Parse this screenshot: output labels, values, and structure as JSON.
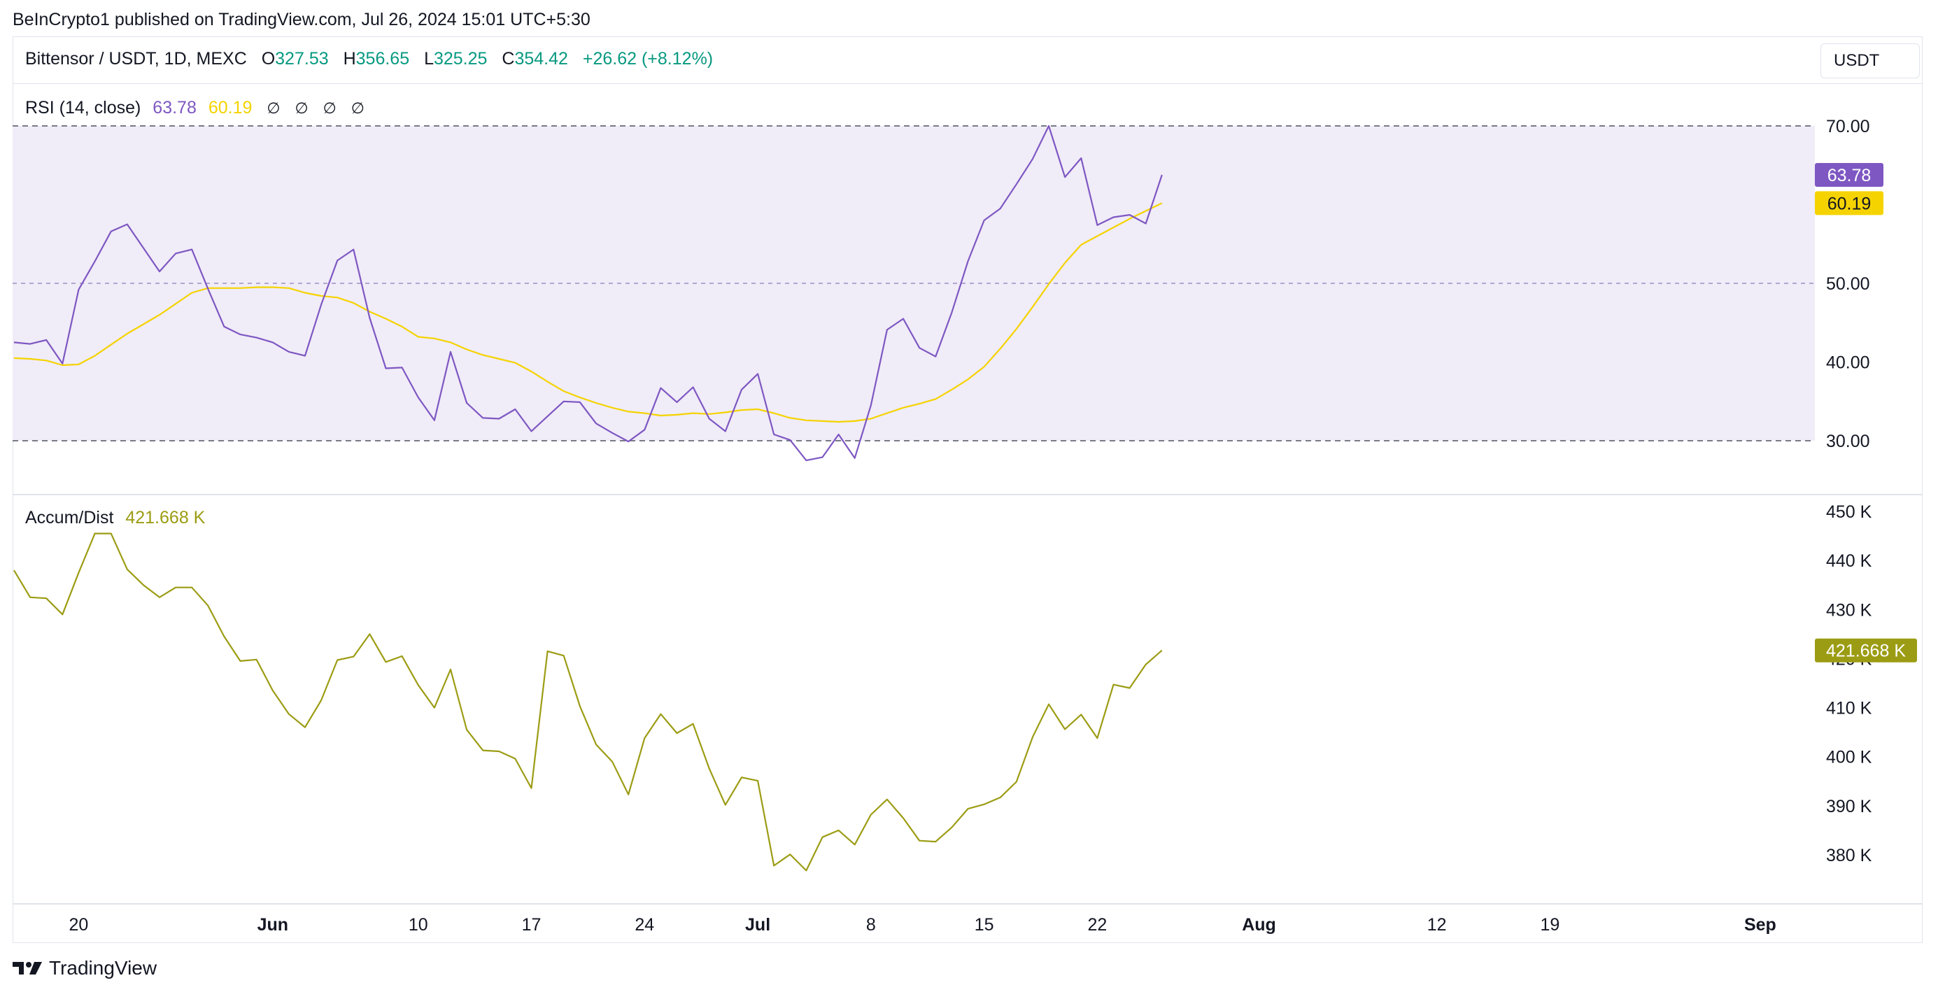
{
  "publish_line": "BeInCrypto1 published on TradingView.com, Jul 26, 2024 15:01 UTC+5:30",
  "symbol": {
    "name": "Bittensor / USDT, 1D, MEXC",
    "open_label": "O",
    "open": "327.53",
    "high_label": "H",
    "high": "356.65",
    "low_label": "L",
    "low": "325.25",
    "close_label": "C",
    "close": "354.42",
    "change": "+26.62 (+8.12%)"
  },
  "currency": "USDT",
  "rsi_legend": {
    "name": "RSI (14, close)",
    "rsi_value": "63.78",
    "ma_value": "60.19",
    "na_marks": [
      "∅",
      "∅",
      "∅",
      "∅"
    ]
  },
  "ad_legend": {
    "name": "Accum/Dist",
    "value": "421.668 K"
  },
  "footer": {
    "brand": "TradingView"
  },
  "colors": {
    "rsi_line": "#7e57c2",
    "rsi_ma": "#f5d300",
    "rsi_band": "#f0ecf8",
    "ad_line": "#9c9c14",
    "ad_badge": "#9c9c14"
  },
  "chart_data": [
    {
      "type": "line",
      "title": "RSI (14, close)",
      "ylim": [
        23,
        74
      ],
      "ticks": [
        "70.00",
        "50.00",
        "40.00",
        "30.00"
      ],
      "tick_values": [
        70,
        50,
        40,
        30
      ],
      "levels": [
        70,
        50,
        30
      ],
      "band": [
        30,
        70
      ],
      "last_labels": {
        "rsi": "63.78",
        "ma": "60.19"
      },
      "x_dates": [
        "May 16",
        "May 17",
        "May 18",
        "May 19",
        "May 20",
        "May 21",
        "May 22",
        "May 23",
        "May 24",
        "May 25",
        "May 26",
        "May 27",
        "May 28",
        "May 29",
        "May 30",
        "May 31",
        "Jun 1",
        "Jun 2",
        "Jun 3",
        "Jun 4",
        "Jun 5",
        "Jun 6",
        "Jun 7",
        "Jun 8",
        "Jun 9",
        "Jun 10",
        "Jun 11",
        "Jun 12",
        "Jun 13",
        "Jun 14",
        "Jun 15",
        "Jun 16",
        "Jun 17",
        "Jun 18",
        "Jun 19",
        "Jun 20",
        "Jun 21",
        "Jun 22",
        "Jun 23",
        "Jun 24",
        "Jun 25",
        "Jun 26",
        "Jun 27",
        "Jun 28",
        "Jun 29",
        "Jun 30",
        "Jul 1",
        "Jul 2",
        "Jul 3",
        "Jul 4",
        "Jul 5",
        "Jul 6",
        "Jul 7",
        "Jul 8",
        "Jul 9",
        "Jul 10",
        "Jul 11",
        "Jul 12",
        "Jul 13",
        "Jul 14",
        "Jul 15",
        "Jul 16",
        "Jul 17",
        "Jul 18",
        "Jul 19",
        "Jul 20",
        "Jul 21",
        "Jul 22",
        "Jul 23",
        "Jul 24",
        "Jul 25",
        "Jul 26"
      ],
      "series": [
        {
          "name": "RSI",
          "values": [
            42.5,
            42.3,
            42.8,
            39.8,
            49.2,
            52.8,
            56.6,
            57.5,
            54.5,
            51.5,
            53.8,
            54.3,
            49.3,
            44.5,
            43.5,
            43.1,
            42.5,
            41.3,
            40.8,
            47.3,
            52.9,
            54.3,
            45.6,
            39.2,
            39.3,
            35.5,
            32.6,
            41.3,
            34.8,
            32.9,
            32.8,
            34,
            31.2,
            33.1,
            35,
            34.9,
            32.2,
            31,
            29.9,
            31.4,
            36.7,
            34.9,
            36.8,
            32.8,
            31.2,
            36.5,
            38.5,
            30.8,
            30.1,
            27.5,
            27.9,
            30.8,
            27.8,
            34.5,
            44.1,
            45.5,
            41.8,
            40.7,
            46.3,
            52.8,
            58,
            59.5,
            62.6,
            65.8,
            70,
            63.5,
            65.9,
            57.4,
            58.4,
            58.7,
            57.6,
            63.78
          ]
        },
        {
          "name": "RSI-based MA",
          "values": [
            40.5,
            40.4,
            40.2,
            39.6,
            39.7,
            40.8,
            42.2,
            43.6,
            44.8,
            46,
            47.4,
            48.8,
            49.4,
            49.4,
            49.4,
            49.5,
            49.5,
            49.4,
            48.8,
            48.4,
            48.2,
            47.5,
            46.4,
            45.5,
            44.5,
            43.2,
            43,
            42.5,
            41.6,
            40.9,
            40.4,
            39.9,
            38.8,
            37.5,
            36.3,
            35.5,
            34.8,
            34.2,
            33.7,
            33.5,
            33.2,
            33.3,
            33.5,
            33.4,
            33.6,
            33.9,
            34,
            33.5,
            32.9,
            32.6,
            32.5,
            32.4,
            32.5,
            32.8,
            33.5,
            34.2,
            34.7,
            35.3,
            36.5,
            37.8,
            39.4,
            41.7,
            44.2,
            47,
            49.9,
            52.6,
            54.9,
            56,
            57.1,
            58.2,
            59.2,
            60.19
          ]
        }
      ]
    },
    {
      "type": "line",
      "title": "Accum/Dist",
      "ylim": [
        369,
        452
      ],
      "ticks": [
        "450 K",
        "440 K",
        "430 K",
        "420 K",
        "410 K",
        "400 K",
        "390 K",
        "380 K"
      ],
      "tick_values": [
        450,
        440,
        430,
        420,
        410,
        400,
        390,
        380
      ],
      "last_label": "421.668 K",
      "x_dates_ref": "same as RSI",
      "series": [
        {
          "name": "Accum/Dist",
          "values": [
            438,
            432.5,
            432.3,
            429,
            437.5,
            445.5,
            445.5,
            438.2,
            435,
            432.5,
            434.5,
            434.5,
            430.8,
            424.5,
            419.5,
            419.8,
            413.5,
            408.7,
            406,
            411.5,
            419.7,
            420.4,
            425,
            419.3,
            420.5,
            414.6,
            410,
            417.8,
            405.5,
            401.3,
            401.1,
            399.6,
            393.6,
            421.5,
            420.6,
            410.3,
            402.5,
            399,
            392.3,
            403.8,
            408.7,
            404.8,
            406.7,
            397.6,
            390.2,
            395.8,
            395.1,
            377.8,
            380.1,
            376.8,
            383.6,
            385,
            382.1,
            388.2,
            391.3,
            387.5,
            382.9,
            382.7,
            385.6,
            389.4,
            390.3,
            391.7,
            394.9,
            404,
            410.7,
            405.6,
            408.6,
            403.8,
            414.7,
            414,
            418.8,
            421.668
          ]
        }
      ]
    }
  ],
  "x_axis": {
    "labels": [
      {
        "date": "May 20",
        "text": "20",
        "bold": false
      },
      {
        "date": "Jun 1",
        "text": "Jun",
        "bold": true
      },
      {
        "date": "Jun 10",
        "text": "10",
        "bold": false
      },
      {
        "date": "Jun 17",
        "text": "17",
        "bold": false
      },
      {
        "date": "Jun 24",
        "text": "24",
        "bold": false
      },
      {
        "date": "Jul 1",
        "text": "Jul",
        "bold": true
      },
      {
        "date": "Jul 8",
        "text": "8",
        "bold": false
      },
      {
        "date": "Jul 15",
        "text": "15",
        "bold": false
      },
      {
        "date": "Jul 22",
        "text": "22",
        "bold": false
      },
      {
        "date": "Aug 1",
        "text": "Aug",
        "bold": true
      },
      {
        "date": "Aug 12",
        "text": "12",
        "bold": false
      },
      {
        "date": "Aug 19",
        "text": "19",
        "bold": false
      },
      {
        "date": "Sep 1",
        "text": "Sep",
        "bold": true
      }
    ]
  }
}
